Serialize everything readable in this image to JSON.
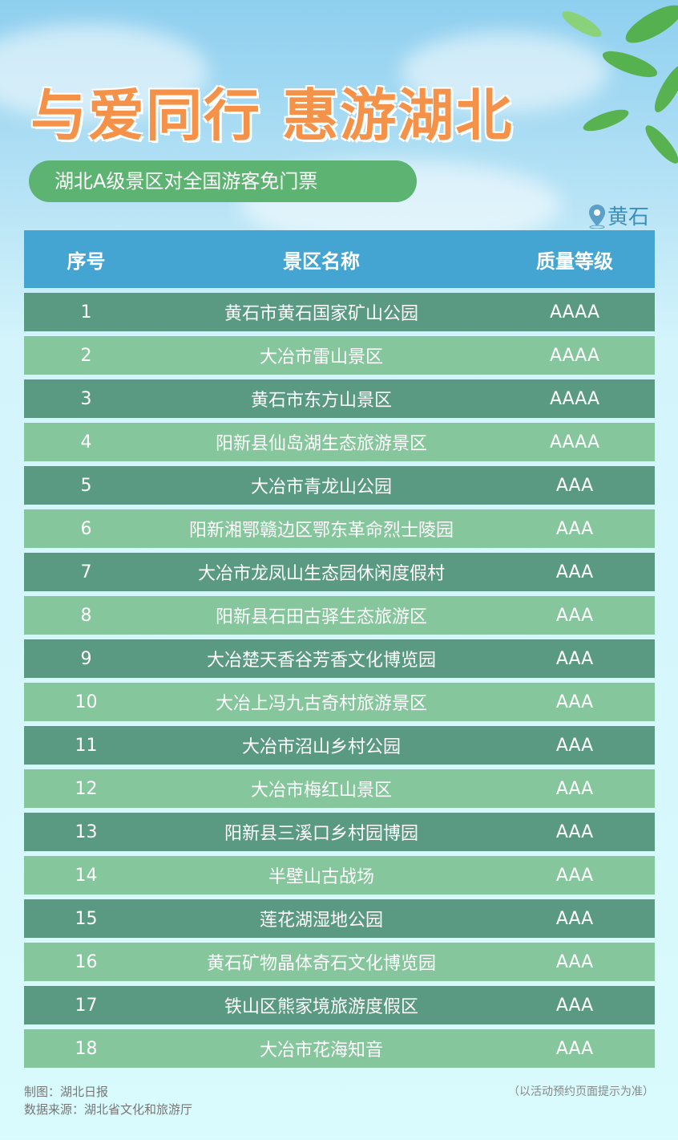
{
  "header": {
    "title": "与爱同行 惠游湖北",
    "subtitle": "湖北A级景区对全国游客免门票",
    "location": "黄石"
  },
  "table": {
    "columns": [
      "序号",
      "景区名称",
      "质量等级"
    ],
    "rows": [
      [
        "1",
        "黄石市黄石国家矿山公园",
        "AAAA"
      ],
      [
        "2",
        "大冶市雷山景区",
        "AAAA"
      ],
      [
        "3",
        "黄石市东方山景区",
        "AAAA"
      ],
      [
        "4",
        "阳新县仙岛湖生态旅游景区",
        "AAAA"
      ],
      [
        "5",
        "大冶市青龙山公园",
        "AAA"
      ],
      [
        "6",
        "阳新湘鄂赣边区鄂东革命烈士陵园",
        "AAA"
      ],
      [
        "7",
        "大冶市龙凤山生态园休闲度假村",
        "AAA"
      ],
      [
        "8",
        "阳新县石田古驿生态旅游区",
        "AAA"
      ],
      [
        "9",
        "大冶楚天香谷芳香文化博览园",
        "AAA"
      ],
      [
        "10",
        "大冶上冯九古奇村旅游景区",
        "AAA"
      ],
      [
        "11",
        "大冶市沼山乡村公园",
        "AAA"
      ],
      [
        "12",
        "大冶市梅红山景区",
        "AAA"
      ],
      [
        "13",
        "阳新县三溪口乡村园博园",
        "AAA"
      ],
      [
        "14",
        "半壁山古战场",
        "AAA"
      ],
      [
        "15",
        "莲花湖湿地公园",
        "AAA"
      ],
      [
        "16",
        "黄石矿物晶体奇石文化博览园",
        "AAA"
      ],
      [
        "17",
        "铁山区熊家境旅游度假区",
        "AAA"
      ],
      [
        "18",
        "大冶市花海知音",
        "AAA"
      ]
    ]
  },
  "footer": {
    "credit": "制图：湖北日报",
    "source": "数据来源：湖北省文化和旅游厅",
    "note": "（以活动预约页面提示为准）"
  },
  "colors": {
    "title": "#f5924a",
    "pill": "#5db371",
    "header": "#44a5d3",
    "row_dark": "#5a9a83",
    "row_light": "#86c69c"
  }
}
